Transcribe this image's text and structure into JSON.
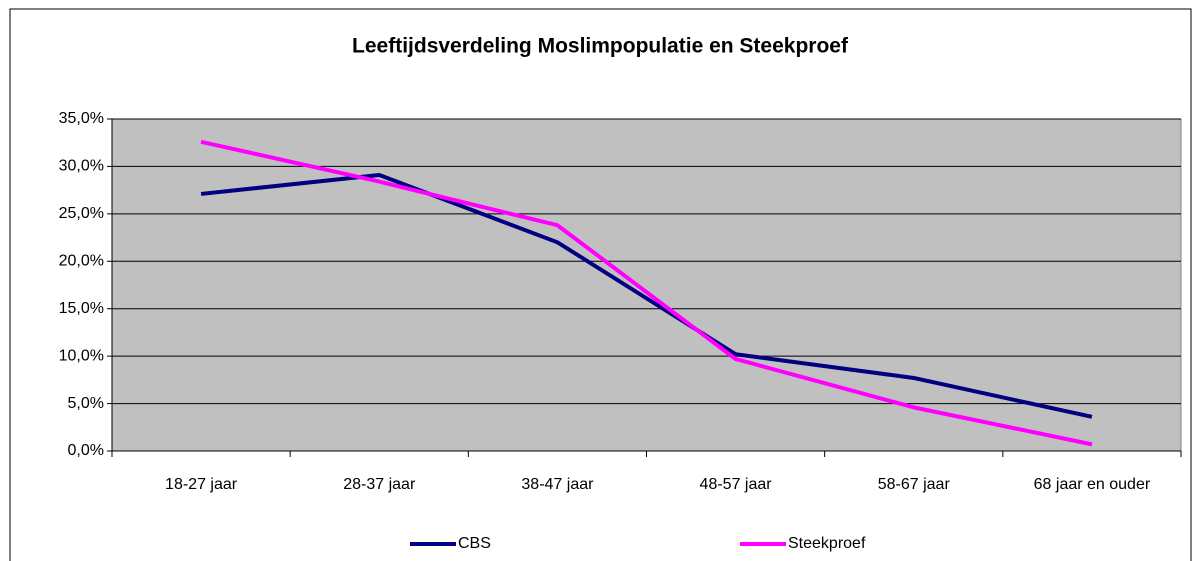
{
  "chart_data": {
    "type": "line",
    "title": "Leeftijdsverdeling Moslimpopulatie en Steekproef",
    "categories": [
      "18-27 jaar",
      "28-37 jaar",
      "38-47 jaar",
      "48-57 jaar",
      "58-67 jaar",
      "68 jaar en ouder"
    ],
    "series": [
      {
        "name": "CBS",
        "color": "#000080",
        "values": [
          27.1,
          29.1,
          22.0,
          10.2,
          7.7,
          3.6
        ]
      },
      {
        "name": "Steekproef",
        "color": "#ff00ff",
        "values": [
          32.6,
          28.4,
          23.8,
          9.7,
          4.6,
          0.7
        ]
      }
    ],
    "ylim": [
      0,
      35
    ],
    "yticks": [
      {
        "value": 0,
        "label": "0,0%"
      },
      {
        "value": 5,
        "label": "5,0%"
      },
      {
        "value": 10,
        "label": "10,0%"
      },
      {
        "value": 15,
        "label": "15,0%"
      },
      {
        "value": 20,
        "label": "20,0%"
      },
      {
        "value": 25,
        "label": "25,0%"
      },
      {
        "value": 30,
        "label": "30,0%"
      },
      {
        "value": 35,
        "label": "35,0%"
      }
    ],
    "grid": true,
    "plot_background": "#c0c0c0",
    "legend": "bottom"
  }
}
